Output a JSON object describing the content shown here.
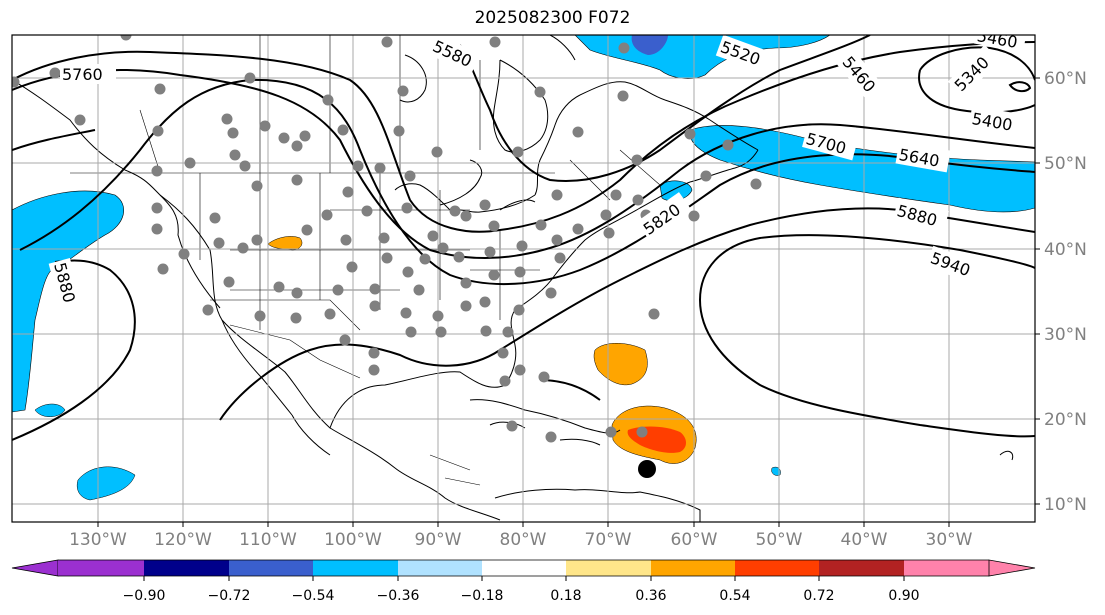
{
  "title": "2025082300 F072",
  "longitude_labels": [
    "130°W",
    "120°W",
    "110°W",
    "100°W",
    "90°W",
    "80°W",
    "70°W",
    "60°W",
    "50°W",
    "40°W",
    "30°W"
  ],
  "latitude_labels": [
    "60°N",
    "50°N",
    "40°N",
    "30°N",
    "20°N",
    "10°N"
  ],
  "contour_labels": [
    "5760",
    "5580",
    "5520",
    "5460",
    "5400",
    "5340",
    "5460",
    "5700",
    "5640",
    "5820",
    "5880",
    "5940",
    "5880"
  ],
  "colorbar": {
    "tick_labels": [
      "−0.90",
      "−0.72",
      "−0.54",
      "−0.36",
      "−0.18",
      "0.18",
      "0.36",
      "0.54",
      "0.72",
      "0.90"
    ],
    "colors": [
      "#9b30d0",
      "#00008b",
      "#3a5fcd",
      "#00bfff",
      "#b0e2ff",
      "#ffffff",
      "#ffe68a",
      "#ffa500",
      "#ff3e00",
      "#b22222",
      "#ff82ab"
    ]
  },
  "colors": {
    "land_outline": "#000000",
    "grid": "#a9a9a9",
    "station_dot": "#808080",
    "storm_center": "#000000"
  }
}
